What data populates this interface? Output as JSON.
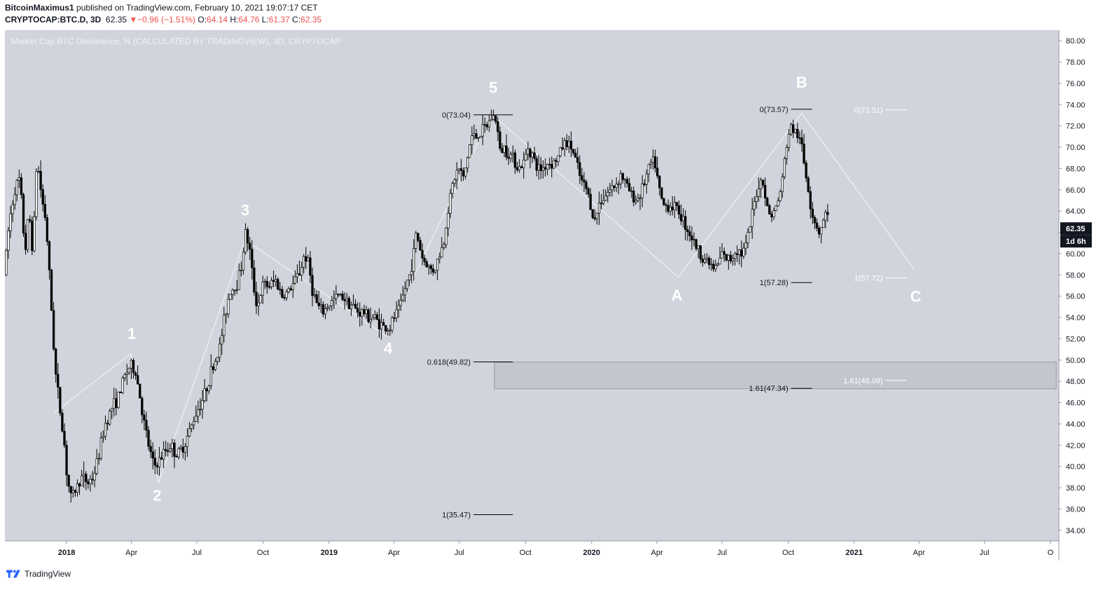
{
  "header": {
    "author": "BitcoinMaximus1",
    "published_text": "published on TradingView.com, February 10, 2021 19:07:17 CET",
    "symbol": "CRYPTOCAP:BTC.D, 3D",
    "last": "62.35",
    "change_arrow": "▼",
    "change": "−0.96 (−1.51%)",
    "open_label": "O:",
    "open": "64.14",
    "high_label": "H:",
    "high": "64.76",
    "low_label": "L:",
    "low": "61.37",
    "close_label": "C:",
    "close": "62.35"
  },
  "footer": {
    "brand": "TradingView"
  },
  "colors": {
    "bg": "#d1d4dc",
    "candle": "#000000",
    "wave_label": "#ffffff",
    "price_tag": "#131722"
  },
  "chart_data": {
    "type": "candlestick",
    "title": "Market Cap BTC Dominance, % (CALCULATED BY TRADINGVIEW), 3D, CRYPTOCAP",
    "ylim": [
      33,
      81
    ],
    "y_ticks": [
      "80.00",
      "78.00",
      "76.00",
      "74.00",
      "72.00",
      "70.00",
      "68.00",
      "66.00",
      "64.00",
      "62.00",
      "60.00",
      "58.00",
      "56.00",
      "54.00",
      "52.00",
      "50.00",
      "48.00",
      "46.00",
      "44.00",
      "42.00",
      "40.00",
      "38.00",
      "36.00",
      "34.00"
    ],
    "x_ticks": [
      {
        "label": "2018",
        "t": 2018.0,
        "bold": true
      },
      {
        "label": "Apr",
        "t": 2018.247,
        "bold": false
      },
      {
        "label": "Jul",
        "t": 2018.496,
        "bold": false
      },
      {
        "label": "Oct",
        "t": 2018.748,
        "bold": false
      },
      {
        "label": "2019",
        "t": 2019.0,
        "bold": true
      },
      {
        "label": "Apr",
        "t": 2019.247,
        "bold": false
      },
      {
        "label": "Jul",
        "t": 2019.496,
        "bold": false
      },
      {
        "label": "Oct",
        "t": 2019.748,
        "bold": false
      },
      {
        "label": "2020",
        "t": 2020.0,
        "bold": true
      },
      {
        "label": "Apr",
        "t": 2020.249,
        "bold": false
      },
      {
        "label": "Jul",
        "t": 2020.497,
        "bold": false
      },
      {
        "label": "Oct",
        "t": 2020.749,
        "bold": false
      },
      {
        "label": "2021",
        "t": 2021.0,
        "bold": true
      },
      {
        "label": "Apr",
        "t": 2021.247,
        "bold": false
      },
      {
        "label": "Jul",
        "t": 2021.496,
        "bold": false
      },
      {
        "label": "O",
        "t": 2021.748,
        "bold": false
      }
    ],
    "price_path": [
      [
        2017.77,
        58
      ],
      [
        2017.79,
        63
      ],
      [
        2017.81,
        66
      ],
      [
        2017.83,
        67
      ],
      [
        2017.85,
        60
      ],
      [
        2017.865,
        64
      ],
      [
        2017.88,
        60
      ],
      [
        2017.895,
        69
      ],
      [
        2017.915,
        65
      ],
      [
        2017.93,
        63
      ],
      [
        2017.95,
        55
      ],
      [
        2017.965,
        49
      ],
      [
        2017.98,
        46
      ],
      [
        2018.0,
        42
      ],
      [
        2018.01,
        39
      ],
      [
        2018.025,
        37
      ],
      [
        2018.045,
        38
      ],
      [
        2018.065,
        39
      ],
      [
        2018.09,
        38.5
      ],
      [
        2018.11,
        39
      ],
      [
        2018.13,
        41
      ],
      [
        2018.155,
        44
      ],
      [
        2018.18,
        45.5
      ],
      [
        2018.205,
        46.5
      ],
      [
        2018.23,
        48.5
      ],
      [
        2018.25,
        49.5
      ],
      [
        2018.27,
        49
      ],
      [
        2018.285,
        47
      ],
      [
        2018.3,
        44.5
      ],
      [
        2018.32,
        42
      ],
      [
        2018.34,
        40
      ],
      [
        2018.36,
        40.5
      ],
      [
        2018.385,
        41.5
      ],
      [
        2018.405,
        42
      ],
      [
        2018.43,
        41
      ],
      [
        2018.455,
        42
      ],
      [
        2018.48,
        43.5
      ],
      [
        2018.5,
        45
      ],
      [
        2018.53,
        46.5
      ],
      [
        2018.56,
        49
      ],
      [
        2018.59,
        51
      ],
      [
        2018.61,
        54
      ],
      [
        2018.63,
        56.5
      ],
      [
        2018.655,
        57
      ],
      [
        2018.675,
        59
      ],
      [
        2018.69,
        62
      ],
      [
        2018.705,
        60.5
      ],
      [
        2018.72,
        57
      ],
      [
        2018.735,
        55
      ],
      [
        2018.755,
        57
      ],
      [
        2018.78,
        57
      ],
      [
        2018.805,
        57.5
      ],
      [
        2018.83,
        56
      ],
      [
        2018.855,
        56.5
      ],
      [
        2018.88,
        57.5
      ],
      [
        2018.9,
        58.5
      ],
      [
        2018.915,
        60
      ],
      [
        2018.93,
        59
      ],
      [
        2018.945,
        56.5
      ],
      [
        2018.965,
        55
      ],
      [
        2018.985,
        54.5
      ],
      [
        2019.0,
        55
      ],
      [
        2019.02,
        55.5
      ],
      [
        2019.04,
        56
      ],
      [
        2019.06,
        56
      ],
      [
        2019.08,
        55.5
      ],
      [
        2019.1,
        55
      ],
      [
        2019.12,
        54.5
      ],
      [
        2019.14,
        54.5
      ],
      [
        2019.16,
        54
      ],
      [
        2019.18,
        54
      ],
      [
        2019.2,
        53.5
      ],
      [
        2019.22,
        53
      ],
      [
        2019.24,
        53
      ],
      [
        2019.255,
        54
      ],
      [
        2019.27,
        54.5
      ],
      [
        2019.285,
        55.5
      ],
      [
        2019.3,
        57
      ],
      [
        2019.315,
        58
      ],
      [
        2019.33,
        60
      ],
      [
        2019.34,
        62
      ],
      [
        2019.35,
        61
      ],
      [
        2019.365,
        59.5
      ],
      [
        2019.38,
        59
      ],
      [
        2019.395,
        58.5
      ],
      [
        2019.41,
        58.5
      ],
      [
        2019.43,
        60
      ],
      [
        2019.445,
        61
      ],
      [
        2019.46,
        64
      ],
      [
        2019.475,
        66
      ],
      [
        2019.49,
        67.5
      ],
      [
        2019.505,
        68
      ],
      [
        2019.52,
        67
      ],
      [
        2019.535,
        69
      ],
      [
        2019.55,
        71
      ],
      [
        2019.57,
        71
      ],
      [
        2019.59,
        71.5
      ],
      [
        2019.61,
        72
      ],
      [
        2019.63,
        73
      ],
      [
        2019.645,
        72.5
      ],
      [
        2019.66,
        69.5
      ],
      [
        2019.675,
        70
      ],
      [
        2019.69,
        69.5
      ],
      [
        2019.71,
        69
      ],
      [
        2019.73,
        68
      ],
      [
        2019.75,
        68.5
      ],
      [
        2019.765,
        70
      ],
      [
        2019.78,
        69.5
      ],
      [
        2019.8,
        68
      ],
      [
        2019.82,
        68
      ],
      [
        2019.84,
        68.5
      ],
      [
        2019.86,
        68.5
      ],
      [
        2019.88,
        69
      ],
      [
        2019.895,
        70
      ],
      [
        2019.91,
        70.5
      ],
      [
        2019.93,
        70
      ],
      [
        2019.945,
        69
      ],
      [
        2019.96,
        67.5
      ],
      [
        2019.975,
        66.5
      ],
      [
        2019.99,
        66
      ],
      [
        2020.005,
        64.5
      ],
      [
        2020.02,
        63
      ],
      [
        2020.04,
        65
      ],
      [
        2020.06,
        65.5
      ],
      [
        2020.08,
        66
      ],
      [
        2020.1,
        66.5
      ],
      [
        2020.12,
        67.5
      ],
      [
        2020.14,
        66.5
      ],
      [
        2020.16,
        65.5
      ],
      [
        2020.18,
        65
      ],
      [
        2020.2,
        66
      ],
      [
        2020.22,
        67.5
      ],
      [
        2020.235,
        68.5
      ],
      [
        2020.25,
        68.5
      ],
      [
        2020.265,
        66
      ],
      [
        2020.28,
        64.5
      ],
      [
        2020.3,
        64.5
      ],
      [
        2020.32,
        64.5
      ],
      [
        2020.34,
        64
      ],
      [
        2020.36,
        63
      ],
      [
        2020.38,
        62
      ],
      [
        2020.4,
        61
      ],
      [
        2020.42,
        60
      ],
      [
        2020.44,
        59.5
      ],
      [
        2020.46,
        59
      ],
      [
        2020.475,
        58.5
      ],
      [
        2020.49,
        59
      ],
      [
        2020.505,
        60
      ],
      [
        2020.52,
        59.5
      ],
      [
        2020.54,
        59.5
      ],
      [
        2020.56,
        60.5
      ],
      [
        2020.58,
        60
      ],
      [
        2020.6,
        61
      ],
      [
        2020.615,
        63
      ],
      [
        2020.63,
        65
      ],
      [
        2020.645,
        66.5
      ],
      [
        2020.66,
        67
      ],
      [
        2020.675,
        64.5
      ],
      [
        2020.69,
        63.5
      ],
      [
        2020.705,
        64
      ],
      [
        2020.72,
        65
      ],
      [
        2020.735,
        67
      ],
      [
        2020.75,
        70
      ],
      [
        2020.765,
        72
      ],
      [
        2020.78,
        71.5
      ],
      [
        2020.795,
        71
      ],
      [
        2020.81,
        70
      ],
      [
        2020.82,
        68
      ],
      [
        2020.835,
        66
      ],
      [
        2020.845,
        64
      ],
      [
        2020.86,
        63
      ],
      [
        2020.875,
        62
      ],
      [
        2020.89,
        63
      ],
      [
        2020.905,
        64
      ]
    ],
    "wave_points": [
      [
        2017.95,
        45
      ],
      [
        2018.245,
        50.6
      ],
      [
        2018.35,
        38.5
      ],
      [
        2018.68,
        61.3
      ],
      [
        2019.215,
        52.3
      ],
      [
        2019.62,
        73.1
      ],
      [
        2020.33,
        57.8
      ],
      [
        2020.8,
        73.2
      ],
      [
        2021.23,
        58.5
      ]
    ],
    "wave_labels": [
      {
        "text": "1",
        "t": 2018.248,
        "y": 52
      },
      {
        "text": "2",
        "t": 2018.345,
        "y": 36.8
      },
      {
        "text": "3",
        "t": 2018.68,
        "y": 63.6
      },
      {
        "text": "4",
        "t": 2019.225,
        "y": 50.6
      },
      {
        "text": "5",
        "t": 2019.625,
        "y": 75.1
      },
      {
        "text": "A",
        "t": 2020.325,
        "y": 55.6
      },
      {
        "text": "B",
        "t": 2020.8,
        "y": 75.6
      },
      {
        "text": "C",
        "t": 2021.235,
        "y": 55.5
      }
    ],
    "fib_levels": [
      {
        "label": "0(73.04)",
        "value": 73.04,
        "t1": 2019.55,
        "t2": 2019.7,
        "color": "#000000"
      },
      {
        "label": "0.618(49.82)",
        "value": 49.82,
        "t1": 2019.55,
        "t2": 2019.7,
        "color": "#000000"
      },
      {
        "label": "1(35.47)",
        "value": 35.47,
        "t1": 2019.55,
        "t2": 2019.7,
        "color": "#000000"
      },
      {
        "label": "0(73.57)",
        "value": 73.57,
        "t1": 2020.76,
        "t2": 2020.84,
        "color": "#000000"
      },
      {
        "label": "1(57.28)",
        "value": 57.28,
        "t1": 2020.76,
        "t2": 2020.84,
        "color": "#000000"
      },
      {
        "label": "1.61(47.34)",
        "value": 47.34,
        "t1": 2020.76,
        "t2": 2020.84,
        "color": "#000000"
      },
      {
        "label": "0(73.51)",
        "value": 73.51,
        "t1": 2021.12,
        "t2": 2021.2,
        "color": "#ffffff"
      },
      {
        "label": "1(57.72)",
        "value": 57.72,
        "t1": 2021.12,
        "t2": 2021.2,
        "color": "#ffffff"
      },
      {
        "label": "1.61(48.09)",
        "value": 48.09,
        "t1": 2021.12,
        "t2": 2021.2,
        "color": "#ffffff"
      }
    ],
    "support_zone": {
      "low": 47.3,
      "high": 49.8,
      "t1": 2019.63,
      "t2": 2021.77
    },
    "current_price": "62.35",
    "countdown": "1d 6h"
  }
}
